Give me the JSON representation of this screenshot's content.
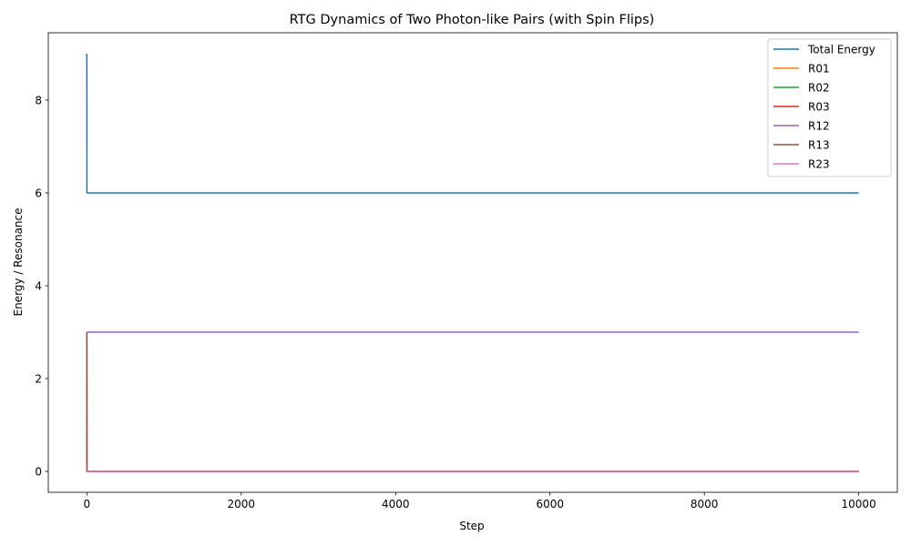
{
  "chart_data": {
    "type": "line",
    "title": "RTG Dynamics of Two Photon-like Pairs (with Spin Flips)",
    "xlabel": "Step",
    "ylabel": "Energy / Resonance",
    "xlim": [
      -500,
      10500
    ],
    "ylim": [
      -0.45,
      9.45
    ],
    "xticks": [
      0,
      2000,
      4000,
      6000,
      8000,
      10000
    ],
    "yticks": [
      0,
      2,
      4,
      6,
      8
    ],
    "grid": false,
    "legend_position": "top-right",
    "series": [
      {
        "name": "Total Energy",
        "color": "#1f77b4",
        "x": [
          0,
          1,
          10000
        ],
        "y": [
          9,
          6,
          6
        ]
      },
      {
        "name": "R01",
        "color": "#ff7f0e",
        "x": [
          0,
          1,
          10000
        ],
        "y": [
          0,
          0,
          0
        ]
      },
      {
        "name": "R02",
        "color": "#2ca02c",
        "x": [
          0,
          1,
          10000
        ],
        "y": [
          0,
          0,
          0
        ]
      },
      {
        "name": "R03",
        "color": "#d62728",
        "x": [
          0,
          1,
          10000
        ],
        "y": [
          3,
          0,
          0
        ]
      },
      {
        "name": "R12",
        "color": "#9467bd",
        "x": [
          0,
          1,
          10000
        ],
        "y": [
          3,
          3,
          3
        ]
      },
      {
        "name": "R13",
        "color": "#8c564b",
        "x": [
          0,
          1,
          10000
        ],
        "y": [
          3,
          0,
          0
        ]
      },
      {
        "name": "R23",
        "color": "#e377c2",
        "x": [
          0,
          1,
          10000
        ],
        "y": [
          0,
          0,
          0
        ]
      }
    ]
  }
}
